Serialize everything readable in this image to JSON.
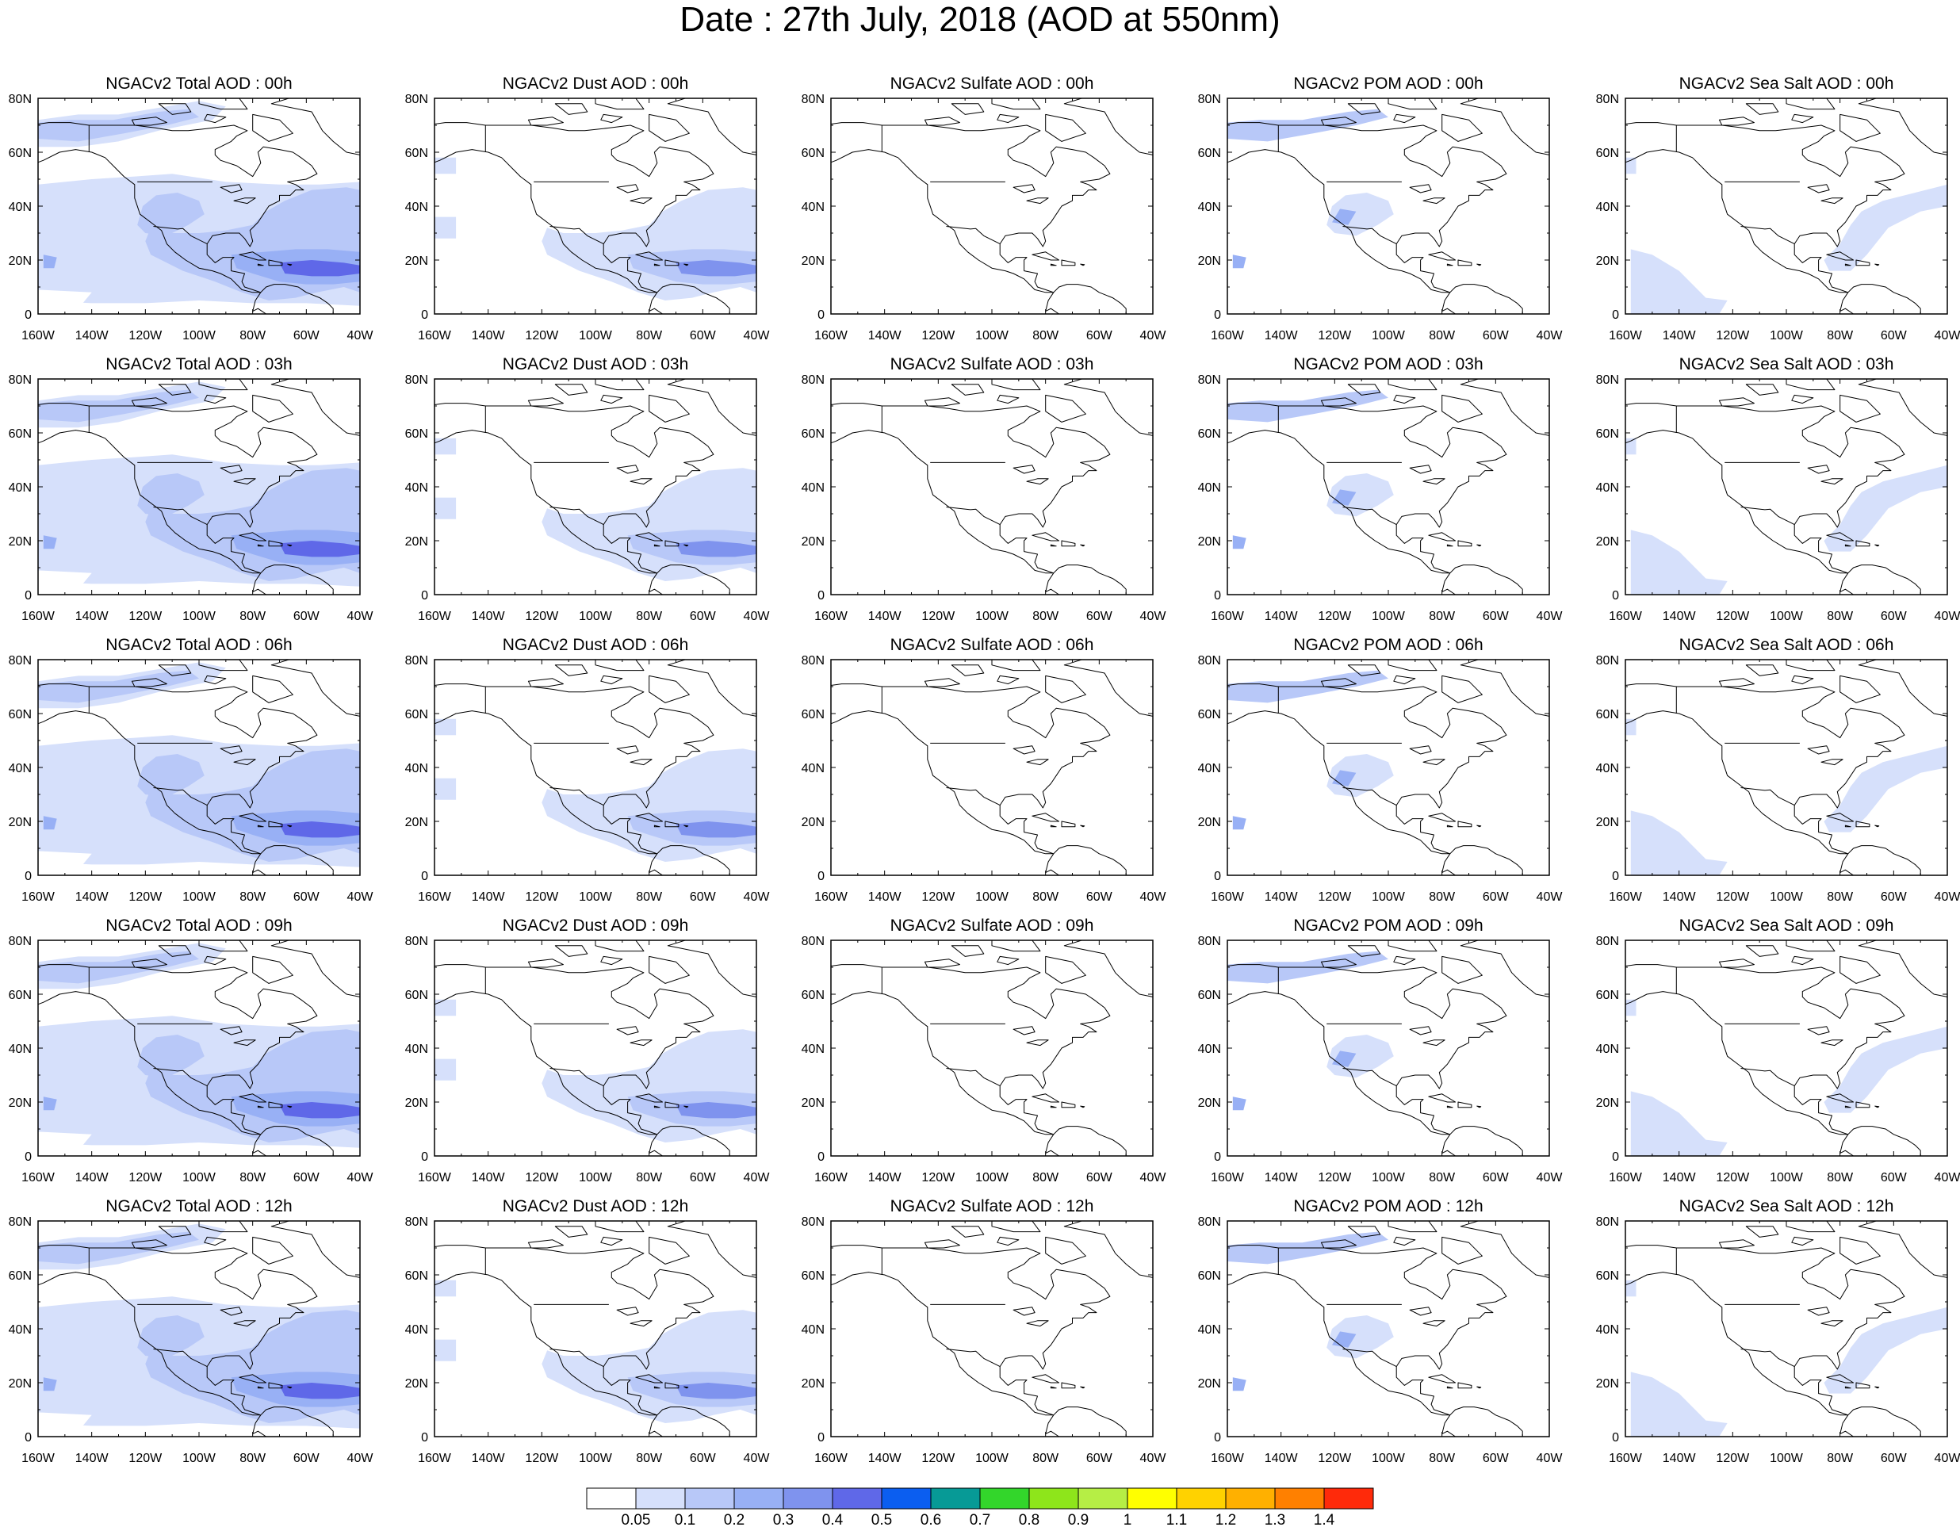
{
  "title": "Date : 27th July, 2018 (AOD at 550nm)",
  "axes": {
    "lat_ticks": [
      "80N",
      "60N",
      "40N",
      "20N",
      "0"
    ],
    "lon_ticks": [
      "160W",
      "140W",
      "120W",
      "100W",
      "80W",
      "60W",
      "40W"
    ]
  },
  "rows": [
    {
      "hour": "00h",
      "titles": [
        "NGACv2 Total AOD : 00h",
        "NGACv2 Dust AOD : 00h",
        "NGACv2 Sulfate AOD : 00h",
        "NGACv2 POM AOD : 00h",
        "NGACv2 Sea Salt AOD : 00h"
      ]
    },
    {
      "hour": "03h",
      "titles": [
        "NGACv2 Total AOD : 03h",
        "NGACv2 Dust AOD : 03h",
        "NGACv2 Sulfate AOD : 03h",
        "NGACv2 POM AOD : 03h",
        "NGACv2 Sea Salt AOD : 03h"
      ]
    },
    {
      "hour": "06h",
      "titles": [
        "NGACv2 Total AOD : 06h",
        "NGACv2 Dust AOD : 06h",
        "NGACv2 Sulfate AOD : 06h",
        "NGACv2 POM AOD : 06h",
        "NGACv2 Sea Salt AOD : 06h"
      ]
    },
    {
      "hour": "09h",
      "titles": [
        "NGACv2 Total AOD : 09h",
        "NGACv2 Dust AOD : 09h",
        "NGACv2 Sulfate AOD : 09h",
        "NGACv2 POM AOD : 09h",
        "NGACv2 Sea Salt  AOD : 09h"
      ]
    },
    {
      "hour": "12h",
      "titles": [
        "NGACv2 Total AOD  : 12h",
        "NGACv2 Dust AOD : 12h",
        "NGACv2 Sulfate AOD : 12h",
        "NGACv2 POM  AOD : 12h",
        "NGACv2 Sea Salt  AOD : 12h"
      ]
    }
  ],
  "colorbar": {
    "colors": [
      "#ffffff",
      "#d6e0fb",
      "#b8c8f8",
      "#98b0f5",
      "#7f93ee",
      "#5f68e8",
      "#0b5ef0",
      "#079a96",
      "#33d62b",
      "#8ee51b",
      "#b6ee45",
      "#ffff00",
      "#ffd200",
      "#ffb000",
      "#ff8000",
      "#ff2a0a"
    ],
    "labels": [
      "0.05",
      "0.1",
      "0.2",
      "0.3",
      "0.4",
      "0.5",
      "0.6",
      "0.7",
      "0.8",
      "0.9",
      "1",
      "1.1",
      "1.2",
      "1.3",
      "1.4"
    ]
  },
  "colors": {
    "aod_light": "#d6e0fb",
    "aod_low": "#b8c8f8",
    "aod_mid": "#98b0f5",
    "aod_high": "#7f93ee",
    "aod_max": "#5f68e8",
    "coast": "#000000",
    "frame": "#000000"
  }
}
